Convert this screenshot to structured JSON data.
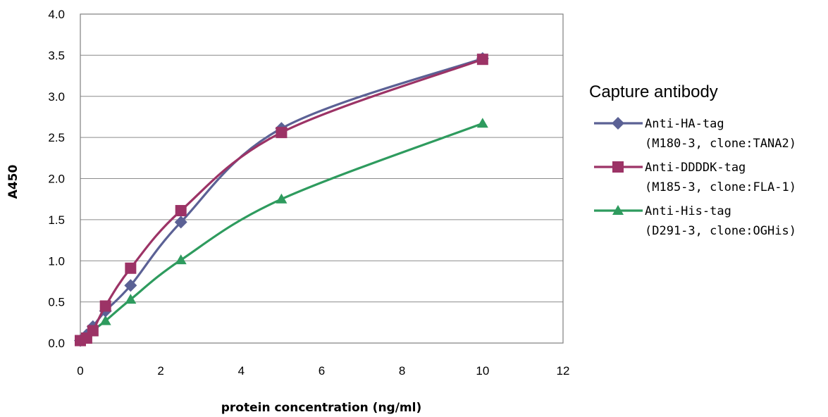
{
  "chart_data": {
    "type": "line",
    "xlabel": "protein concentration (ng/ml)",
    "ylabel": "A450",
    "xlim": [
      0,
      12
    ],
    "ylim": [
      0,
      4.0
    ],
    "x_ticks": [
      "0",
      "2",
      "4",
      "6",
      "8",
      "10",
      "12"
    ],
    "y_ticks": [
      "0.0",
      "0.5",
      "1.0",
      "1.5",
      "2.0",
      "2.5",
      "3.0",
      "3.5",
      "4.0"
    ],
    "grid": "horizontal",
    "legend_title": "Capture antibody",
    "legend_position": "right",
    "series": [
      {
        "name": "Anti-HA-tag",
        "name_line2": "(M180-3, clone:TANA2)",
        "color": "#5B6195",
        "marker": "diamond",
        "x": [
          0,
          0.156,
          0.3125,
          0.625,
          1.25,
          2.5,
          5,
          10
        ],
        "y": [
          0.03,
          0.1,
          0.2,
          0.39,
          0.7,
          1.47,
          2.61,
          3.46
        ]
      },
      {
        "name": "Anti-DDDDK-tag",
        "name_line2": "(M185-3, clone:FLA-1)",
        "color": "#9C3366",
        "marker": "square",
        "x": [
          0,
          0.156,
          0.3125,
          0.625,
          1.25,
          2.5,
          5,
          10
        ],
        "y": [
          0.03,
          0.06,
          0.15,
          0.45,
          0.91,
          1.61,
          2.56,
          3.45
        ]
      },
      {
        "name": "Anti-His-tag",
        "name_line2": "(D291-3, clone:OGHis)",
        "color": "#2E9B5E",
        "marker": "triangle",
        "x": [
          0,
          0.156,
          0.3125,
          0.625,
          1.25,
          2.5,
          5,
          10
        ],
        "y": [
          0.02,
          0.06,
          0.15,
          0.27,
          0.53,
          1.01,
          1.75,
          2.67
        ]
      }
    ]
  }
}
